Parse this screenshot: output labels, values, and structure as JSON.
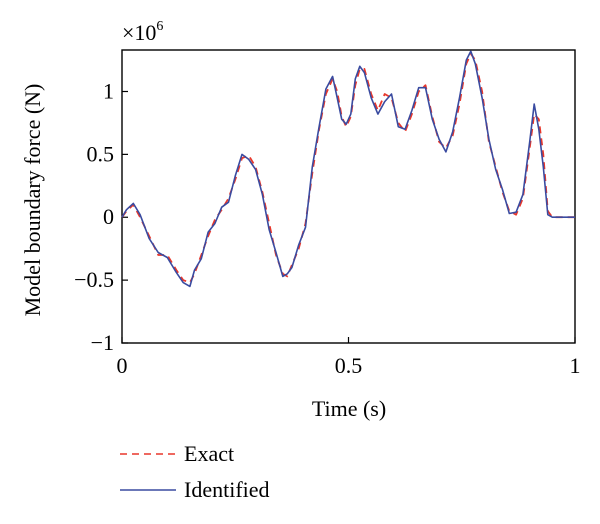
{
  "chart_data": {
    "type": "line",
    "title": "",
    "xlabel": "Time (s)",
    "ylabel": "Model boundary force (N)",
    "xlim": [
      0,
      1
    ],
    "ylim": [
      -1.0,
      1.33
    ],
    "y_multiplier": {
      "base": "×10",
      "exponent": "6"
    },
    "xticks": [
      0,
      0.5,
      1
    ],
    "xtick_labels": [
      "0",
      "0.5",
      "1"
    ],
    "yticks": [
      -1,
      -0.5,
      0,
      0.5,
      1
    ],
    "ytick_labels": [
      "−1",
      "−0.5",
      "0",
      "0.5",
      "1"
    ],
    "grid": false,
    "legend": {
      "placement": "below",
      "entries": [
        "Exact",
        "Identified"
      ]
    },
    "series": [
      {
        "name": "Exact",
        "color": "#e8372b",
        "style": "dashed",
        "x": [
          0,
          0.01,
          0.025,
          0.04,
          0.06,
          0.08,
          0.1,
          0.12,
          0.135,
          0.15,
          0.16,
          0.175,
          0.19,
          0.205,
          0.22,
          0.235,
          0.25,
          0.265,
          0.28,
          0.295,
          0.31,
          0.325,
          0.34,
          0.355,
          0.365,
          0.375,
          0.39,
          0.405,
          0.42,
          0.435,
          0.45,
          0.465,
          0.475,
          0.485,
          0.495,
          0.505,
          0.515,
          0.525,
          0.535,
          0.55,
          0.565,
          0.58,
          0.595,
          0.61,
          0.625,
          0.64,
          0.655,
          0.67,
          0.685,
          0.7,
          0.715,
          0.73,
          0.745,
          0.76,
          0.77,
          0.78,
          0.795,
          0.81,
          0.825,
          0.84,
          0.855,
          0.87,
          0.885,
          0.9,
          0.91,
          0.92,
          0.93,
          0.94,
          0.95,
          0.96,
          0.97,
          0.98,
          0.99,
          1.0
        ],
        "y": [
          0,
          0.05,
          0.1,
          0.0,
          -0.15,
          -0.3,
          -0.3,
          -0.42,
          -0.5,
          -0.52,
          -0.45,
          -0.3,
          -0.15,
          -0.02,
          0.06,
          0.15,
          0.3,
          0.47,
          0.49,
          0.4,
          0.2,
          -0.05,
          -0.3,
          -0.45,
          -0.47,
          -0.38,
          -0.25,
          -0.05,
          0.35,
          0.7,
          0.98,
          1.1,
          1.0,
          0.8,
          0.72,
          0.8,
          1.05,
          1.18,
          1.18,
          0.98,
          0.85,
          0.98,
          0.95,
          0.75,
          0.68,
          0.82,
          1.0,
          1.05,
          0.8,
          0.6,
          0.55,
          0.65,
          0.9,
          1.22,
          1.3,
          1.25,
          1.0,
          0.6,
          0.4,
          0.2,
          0.05,
          0.02,
          0.15,
          0.55,
          0.82,
          0.78,
          0.5,
          0.05,
          0,
          0,
          0,
          0,
          0,
          0
        ]
      },
      {
        "name": "Identified",
        "color": "#3a4ba0",
        "style": "solid",
        "x": [
          0,
          0.01,
          0.025,
          0.04,
          0.06,
          0.08,
          0.1,
          0.12,
          0.135,
          0.15,
          0.16,
          0.175,
          0.19,
          0.205,
          0.22,
          0.235,
          0.25,
          0.265,
          0.28,
          0.295,
          0.31,
          0.325,
          0.34,
          0.355,
          0.365,
          0.375,
          0.39,
          0.405,
          0.42,
          0.435,
          0.45,
          0.465,
          0.475,
          0.485,
          0.495,
          0.505,
          0.515,
          0.525,
          0.535,
          0.55,
          0.565,
          0.58,
          0.595,
          0.61,
          0.625,
          0.64,
          0.655,
          0.67,
          0.685,
          0.7,
          0.715,
          0.73,
          0.745,
          0.76,
          0.77,
          0.78,
          0.795,
          0.81,
          0.825,
          0.84,
          0.855,
          0.87,
          0.885,
          0.9,
          0.91,
          0.92,
          0.93,
          0.94,
          0.95,
          0.96,
          0.97,
          0.98,
          0.99,
          1.0
        ],
        "y": [
          0,
          0.06,
          0.11,
          0.02,
          -0.17,
          -0.28,
          -0.32,
          -0.44,
          -0.52,
          -0.55,
          -0.42,
          -0.33,
          -0.12,
          -0.05,
          0.08,
          0.12,
          0.33,
          0.5,
          0.46,
          0.38,
          0.18,
          -0.1,
          -0.28,
          -0.47,
          -0.45,
          -0.4,
          -0.22,
          -0.08,
          0.4,
          0.72,
          1.02,
          1.12,
          0.95,
          0.78,
          0.74,
          0.82,
          1.1,
          1.2,
          1.15,
          0.95,
          0.82,
          0.92,
          0.98,
          0.72,
          0.7,
          0.85,
          1.03,
          1.03,
          0.78,
          0.62,
          0.52,
          0.68,
          0.95,
          1.25,
          1.32,
          1.22,
          0.95,
          0.62,
          0.38,
          0.22,
          0.03,
          0.04,
          0.18,
          0.6,
          0.9,
          0.7,
          0.4,
          0.02,
          0,
          0,
          0,
          0,
          0,
          0
        ]
      }
    ]
  }
}
